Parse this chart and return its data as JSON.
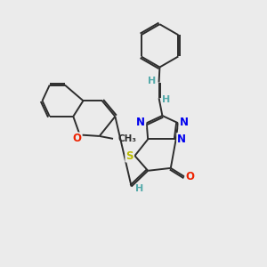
{
  "background_color": "#ebebeb",
  "bond_color": "#2d2d2d",
  "atom_colors": {
    "N": "#0000ee",
    "O": "#ee2200",
    "S": "#bbbb00",
    "H": "#55aaaa",
    "C": "#2d2d2d"
  },
  "lw": 1.4,
  "dbo": 0.055,
  "fs": 8.5
}
